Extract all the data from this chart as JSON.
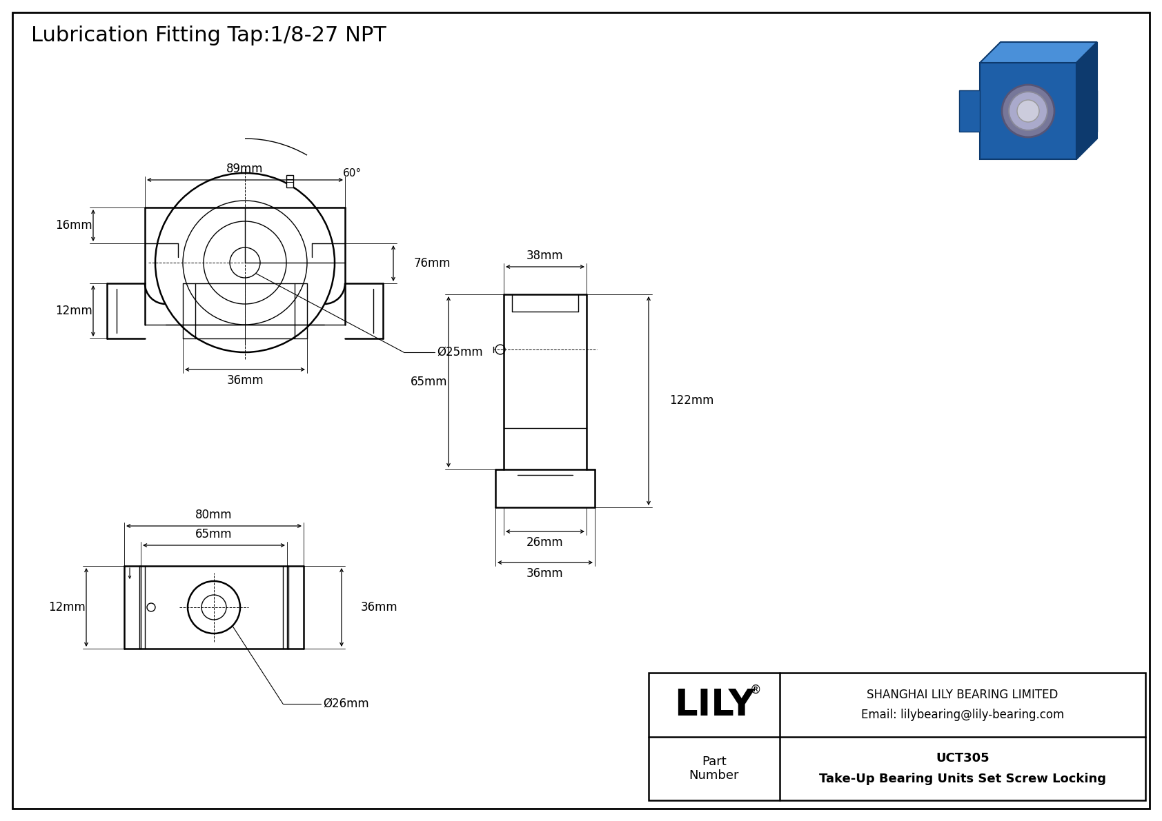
{
  "title": "Lubrication Fitting Tap:1/8-27 NPT",
  "bg_color": "#ffffff",
  "line_color": "#000000",
  "title_fontsize": 22,
  "dim_fontsize": 12,
  "company_name": "SHANGHAI LILY BEARING LIMITED",
  "company_email": "Email: lilybearing@lily-bearing.com",
  "brand": "LILY",
  "brand_registered": "®",
  "part_label": "Part\nNumber",
  "part_number": "UCT305",
  "part_desc": "Take-Up Bearing Units Set Screw Locking",
  "dims": {
    "top_width": "89mm",
    "front_height": "76mm",
    "front_dia": "Ø25mm",
    "left_dim1": "16mm",
    "left_dim2": "12mm",
    "bottom_dim": "36mm",
    "angle": "60°",
    "side_top": "38mm",
    "side_left": "65mm",
    "side_right": "122mm",
    "side_bot1": "26mm",
    "side_bot2": "36mm",
    "bot_width1": "80mm",
    "bot_width2": "65mm",
    "bot_right": "36mm",
    "bot_left": "12mm",
    "bot_dia": "Ø26mm"
  },
  "colors_3d": {
    "body": "#1e5fa8",
    "body_light": "#4a90d9",
    "body_dark": "#0d3a6e",
    "ring_outer": "#c8c8c8",
    "ring_inner": "#e8e8e8",
    "ring_dark": "#888888"
  }
}
